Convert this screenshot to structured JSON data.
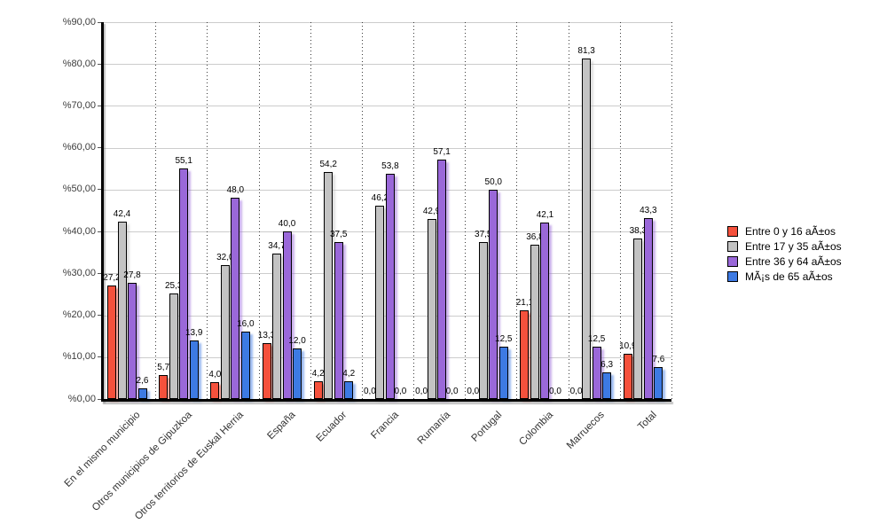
{
  "chart_data": {
    "type": "bar",
    "title": "",
    "xlabel": "",
    "ylabel": "",
    "ylim": [
      0,
      90
    ],
    "ytick_step": 10,
    "ytick_labels": [
      "%0,00",
      "%10,00",
      "%20,00",
      "%30,00",
      "%40,00",
      "%50,00",
      "%60,00",
      "%70,00",
      "%80,00",
      "%90,00"
    ],
    "decimal_separator": ",",
    "grid": {
      "horizontal": true,
      "vertical_dotted": true
    },
    "legend_position": "right",
    "value_labels": true,
    "categories": [
      "En el mismo municipio",
      "Otros municipios de Gipuzkoa",
      "Otros territorios de Euskal Herria",
      "España",
      "Ecuador",
      "Francia",
      "Rumanía",
      "Portugal",
      "Colombia",
      "Marruecos",
      "Total"
    ],
    "series": [
      {
        "name": "Entre 0 y 16 aÃ±os",
        "color": "#F5513C",
        "values": [
          27.2,
          5.7,
          4.0,
          13.3,
          4.2,
          0.0,
          0.0,
          0.0,
          21.1,
          0.0,
          10.9
        ]
      },
      {
        "name": "Entre 17 y 35 aÃ±os",
        "color": "#C3C3C3",
        "values": [
          42.4,
          25.3,
          32.0,
          34.7,
          54.2,
          46.2,
          42.9,
          37.5,
          36.8,
          81.3,
          38.3
        ]
      },
      {
        "name": "Entre 36 y 64 aÃ±os",
        "color": "#9A68D9",
        "values": [
          27.8,
          55.1,
          48.0,
          40.0,
          37.5,
          53.8,
          57.1,
          50.0,
          42.1,
          12.5,
          43.3
        ]
      },
      {
        "name": "MÃ¡s de 65 aÃ±os",
        "color": "#3D7AE3",
        "values": [
          2.6,
          13.9,
          16.0,
          12.0,
          4.2,
          0.0,
          0.0,
          12.5,
          0.0,
          6.3,
          7.6
        ]
      }
    ]
  }
}
